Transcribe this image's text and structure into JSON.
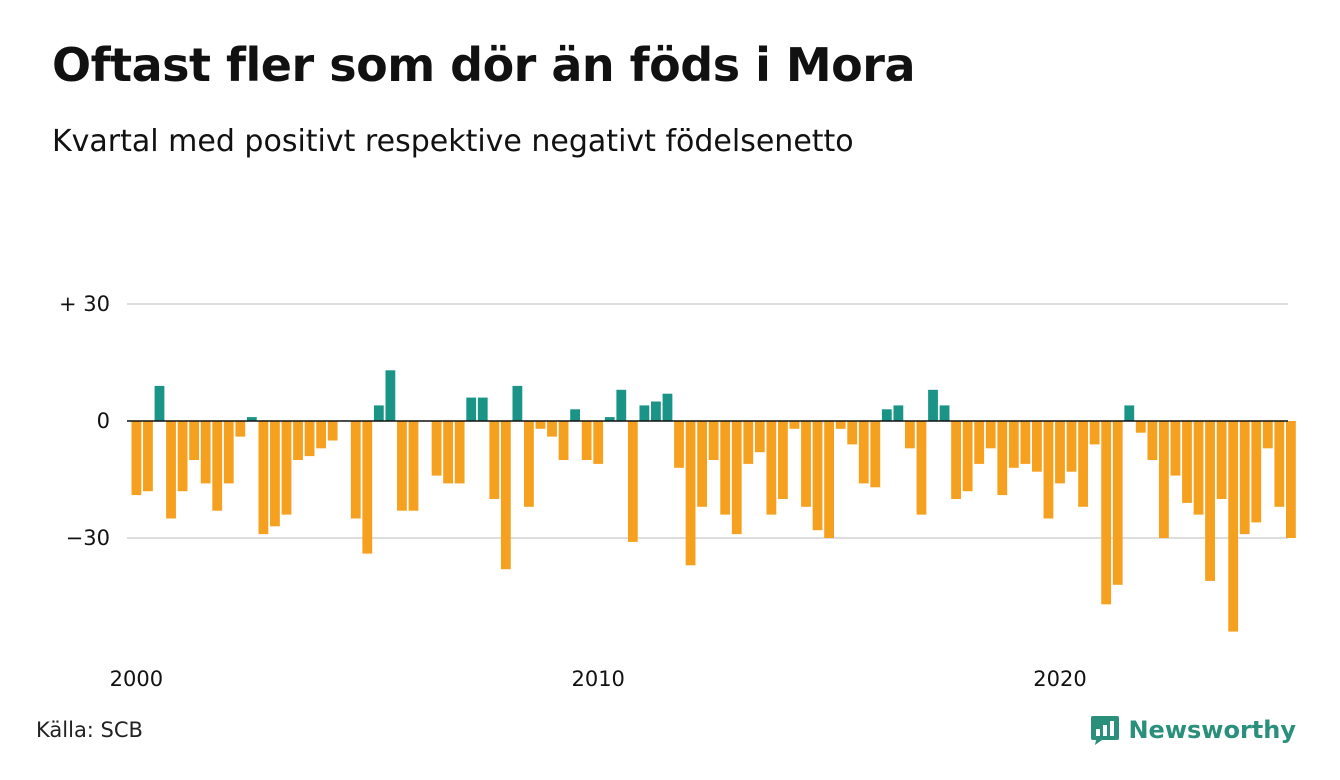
{
  "title": "Oftast fler som dör än föds i Mora",
  "subtitle": "Kvartal med positivt respektive negativt födelsenetto",
  "source": "Källa: SCB",
  "brand": {
    "name": "Newsworthy",
    "icon": "newsworthy-logo-icon"
  },
  "colors": {
    "positive": "#1a9486",
    "negative": "#f5a01e",
    "grid": "#dddddd",
    "zero_line": "#111111"
  },
  "chart_data": {
    "type": "bar",
    "start_year": 2000,
    "period": "quarter",
    "x_ticks": [
      "2000",
      "2010",
      "2020"
    ],
    "y_ticks": [
      {
        "value": 30,
        "label": "+ 30"
      },
      {
        "value": 0,
        "label": "0"
      },
      {
        "value": -30,
        "label": "−30"
      }
    ],
    "ylim": [
      -56,
      34
    ],
    "grid": true,
    "values": [
      -19,
      -18,
      9,
      -25,
      -18,
      -10,
      -16,
      -23,
      -16,
      -4,
      1,
      -29,
      -27,
      -24,
      -10,
      -9,
      -7,
      -5,
      0,
      -25,
      -34,
      4,
      13,
      -23,
      -23,
      0,
      -14,
      -16,
      -16,
      6,
      6,
      -20,
      -38,
      9,
      -22,
      -2,
      -4,
      -10,
      3,
      -10,
      -11,
      1,
      8,
      -31,
      4,
      5,
      7,
      -12,
      -37,
      -22,
      -10,
      -24,
      -29,
      -11,
      -8,
      -24,
      -20,
      -2,
      -22,
      -28,
      -30,
      -2,
      -6,
      -16,
      -17,
      3,
      4,
      -7,
      -24,
      8,
      4,
      -20,
      -18,
      -11,
      -7,
      -19,
      -12,
      -11,
      -13,
      -25,
      -16,
      -13,
      -22,
      -6,
      -47,
      -42,
      4,
      -3,
      -10,
      -30,
      -14,
      -21,
      -24,
      -41,
      -20,
      -54,
      -29,
      -26,
      -7,
      -22,
      -30
    ]
  }
}
